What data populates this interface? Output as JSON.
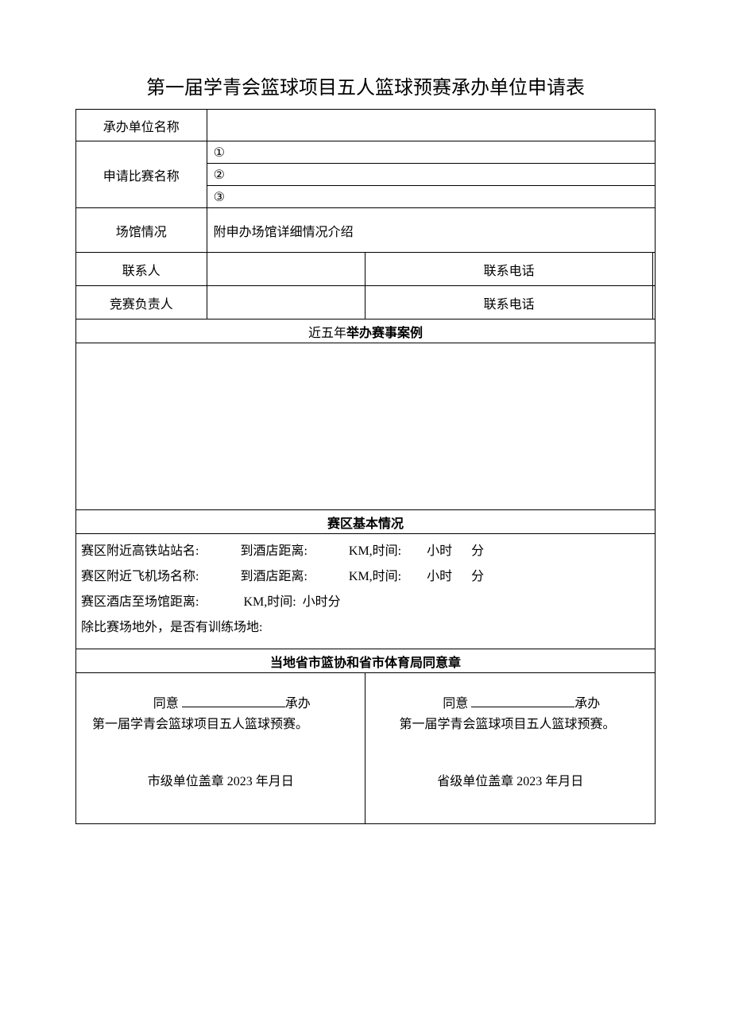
{
  "title": "第一届学青会篮球项目五人篮球预赛承办单位申请表",
  "rows": {
    "org_name_label": "承办单位名称",
    "comp_name_label": "申请比赛名称",
    "comp_opts": {
      "one": "①",
      "two": "②",
      "three": "③"
    },
    "venue_label": "场馆情况",
    "venue_desc": "附申办场馆详细情况介绍",
    "contact_label": "联系人",
    "contact_phone_label": "联系电话",
    "manager_label": "竞赛负责人",
    "manager_phone_label": "联系电话"
  },
  "sections": {
    "cases_prefix": "近五年",
    "cases_bold": "举办赛事案例",
    "zone_header": "赛区基本情况",
    "approval_header": "当地省市篮协和省市体育局同意章"
  },
  "zone": {
    "line1": "赛区附近高铁站站名:             到酒店距离:             KM,时间:        小时      分",
    "line2": "赛区附近飞机场名称:             到酒店距离:             KM,时间:        小时      分",
    "line3": "赛区酒店至场馆距离:              KM,时间:  小时分",
    "line4": "除比赛场地外，是否有训练场地:"
  },
  "approval": {
    "agree": "同意",
    "suffix": "承办",
    "body": "第一届学青会篮球项目五人篮球预赛。",
    "city_stamp": "市级单位盖章 2023 年月日",
    "prov_stamp": "省级单位盖章 2023 年月日"
  },
  "colors": {
    "text": "#000000",
    "border": "#000000",
    "background": "#ffffff"
  }
}
